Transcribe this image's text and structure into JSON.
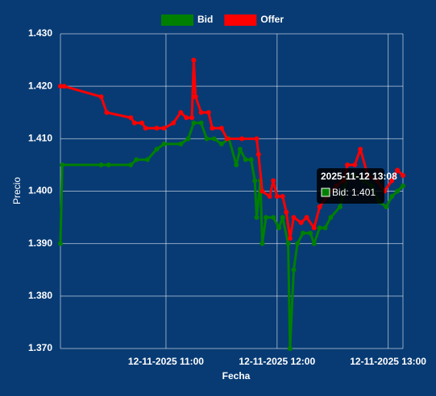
{
  "chart_data": {
    "type": "line",
    "x_label": "Fecha",
    "y_label": "Precio",
    "ylim": [
      1.37,
      1.43
    ],
    "yticks": [
      {
        "value": 1.37,
        "label": "1.370"
      },
      {
        "value": 1.38,
        "label": "1.380"
      },
      {
        "value": 1.39,
        "label": "1.390"
      },
      {
        "value": 1.4,
        "label": "1.400"
      },
      {
        "value": 1.41,
        "label": "1.410"
      },
      {
        "value": 1.42,
        "label": "1.420"
      },
      {
        "value": 1.43,
        "label": "1.430"
      }
    ],
    "xlim": [
      "12-11-2025 10:03",
      "12-11-2025 13:08"
    ],
    "xticks": [
      "12-11-2025 11:00",
      "12-11-2025 12:00",
      "12-11-2025 13:00"
    ],
    "grid": true,
    "legend": "top",
    "series": [
      {
        "name": "Bid",
        "color": "#008000",
        "x": [
          "12-11-2025 10:03",
          "12-11-2025 10:04",
          "12-11-2025 10:25",
          "12-11-2025 10:29",
          "12-11-2025 10:41",
          "12-11-2025 10:44",
          "12-11-2025 10:50",
          "12-11-2025 10:55",
          "12-11-2025 10:59",
          "12-11-2025 11:08",
          "12-11-2025 11:12",
          "12-11-2025 11:15",
          "12-11-2025 11:19",
          "12-11-2025 11:22",
          "12-11-2025 11:26",
          "12-11-2025 11:30",
          "12-11-2025 11:34",
          "12-11-2025 11:38",
          "12-11-2025 11:40",
          "12-11-2025 11:43",
          "12-11-2025 11:46",
          "12-11-2025 11:48",
          "12-11-2025 11:49",
          "12-11-2025 11:51",
          "12-11-2025 11:52",
          "12-11-2025 11:54",
          "12-11-2025 11:58",
          "12-11-2025 12:01",
          "12-11-2025 12:03",
          "12-11-2025 12:06",
          "12-11-2025 12:07",
          "12-11-2025 12:09",
          "12-11-2025 12:11",
          "12-11-2025 12:14",
          "12-11-2025 12:18",
          "12-11-2025 12:20",
          "12-11-2025 12:23",
          "12-11-2025 12:26",
          "12-11-2025 12:29",
          "12-11-2025 12:34",
          "12-11-2025 12:38",
          "12-11-2025 12:42",
          "12-11-2025 12:47",
          "12-11-2025 12:51",
          "12-11-2025 12:55",
          "12-11-2025 12:59",
          "12-11-2025 13:02",
          "12-11-2025 13:05",
          "12-11-2025 13:08"
        ],
        "values": [
          1.39,
          1.405,
          1.405,
          1.405,
          1.405,
          1.406,
          1.406,
          1.408,
          1.409,
          1.409,
          1.41,
          1.413,
          1.413,
          1.41,
          1.41,
          1.409,
          1.41,
          1.405,
          1.408,
          1.406,
          1.406,
          1.402,
          1.395,
          1.402,
          1.39,
          1.395,
          1.395,
          1.393,
          1.395,
          1.39,
          1.37,
          1.385,
          1.39,
          1.392,
          1.392,
          1.39,
          1.393,
          1.393,
          1.395,
          1.397,
          1.403,
          1.403,
          1.402,
          1.401,
          1.398,
          1.397,
          1.399,
          1.4,
          1.401
        ]
      },
      {
        "name": "Offer",
        "color": "#ff0000",
        "x": [
          "12-11-2025 10:03",
          "12-11-2025 10:05",
          "12-11-2025 10:25",
          "12-11-2025 10:28",
          "12-11-2025 10:41",
          "12-11-2025 10:43",
          "12-11-2025 10:47",
          "12-11-2025 10:49",
          "12-11-2025 10:55",
          "12-11-2025 10:59",
          "12-11-2025 11:04",
          "12-11-2025 11:08",
          "12-11-2025 11:11",
          "12-11-2025 11:14",
          "12-11-2025 11:15",
          "12-11-2025 11:16",
          "12-11-2025 11:19",
          "12-11-2025 11:23",
          "12-11-2025 11:25",
          "12-11-2025 11:30",
          "12-11-2025 11:33",
          "12-11-2025 11:41",
          "12-11-2025 11:49",
          "12-11-2025 11:50",
          "12-11-2025 11:52",
          "12-11-2025 11:56",
          "12-11-2025 11:58",
          "12-11-2025 12:00",
          "12-11-2025 12:03",
          "12-11-2025 12:05",
          "12-11-2025 12:07",
          "12-11-2025 12:09",
          "12-11-2025 12:13",
          "12-11-2025 12:16",
          "12-11-2025 12:20",
          "12-11-2025 12:23",
          "12-11-2025 12:27",
          "12-11-2025 12:32",
          "12-11-2025 12:36",
          "12-11-2025 12:38",
          "12-11-2025 12:42",
          "12-11-2025 12:45",
          "12-11-2025 12:49",
          "12-11-2025 12:54",
          "12-11-2025 12:58",
          "12-11-2025 13:02",
          "12-11-2025 13:05",
          "12-11-2025 13:08"
        ],
        "values": [
          1.42,
          1.42,
          1.418,
          1.415,
          1.414,
          1.413,
          1.413,
          1.412,
          1.412,
          1.412,
          1.413,
          1.415,
          1.414,
          1.414,
          1.425,
          1.418,
          1.415,
          1.415,
          1.412,
          1.412,
          1.41,
          1.41,
          1.41,
          1.407,
          1.4,
          1.399,
          1.402,
          1.399,
          1.399,
          1.396,
          1.391,
          1.395,
          1.394,
          1.395,
          1.393,
          1.397,
          1.399,
          1.401,
          1.402,
          1.405,
          1.405,
          1.408,
          1.403,
          1.402,
          1.4,
          1.402,
          1.404,
          1.403
        ]
      }
    ],
    "tooltip": {
      "title": "2025-11-12 13:08",
      "label": "Bid: 1.401"
    }
  }
}
